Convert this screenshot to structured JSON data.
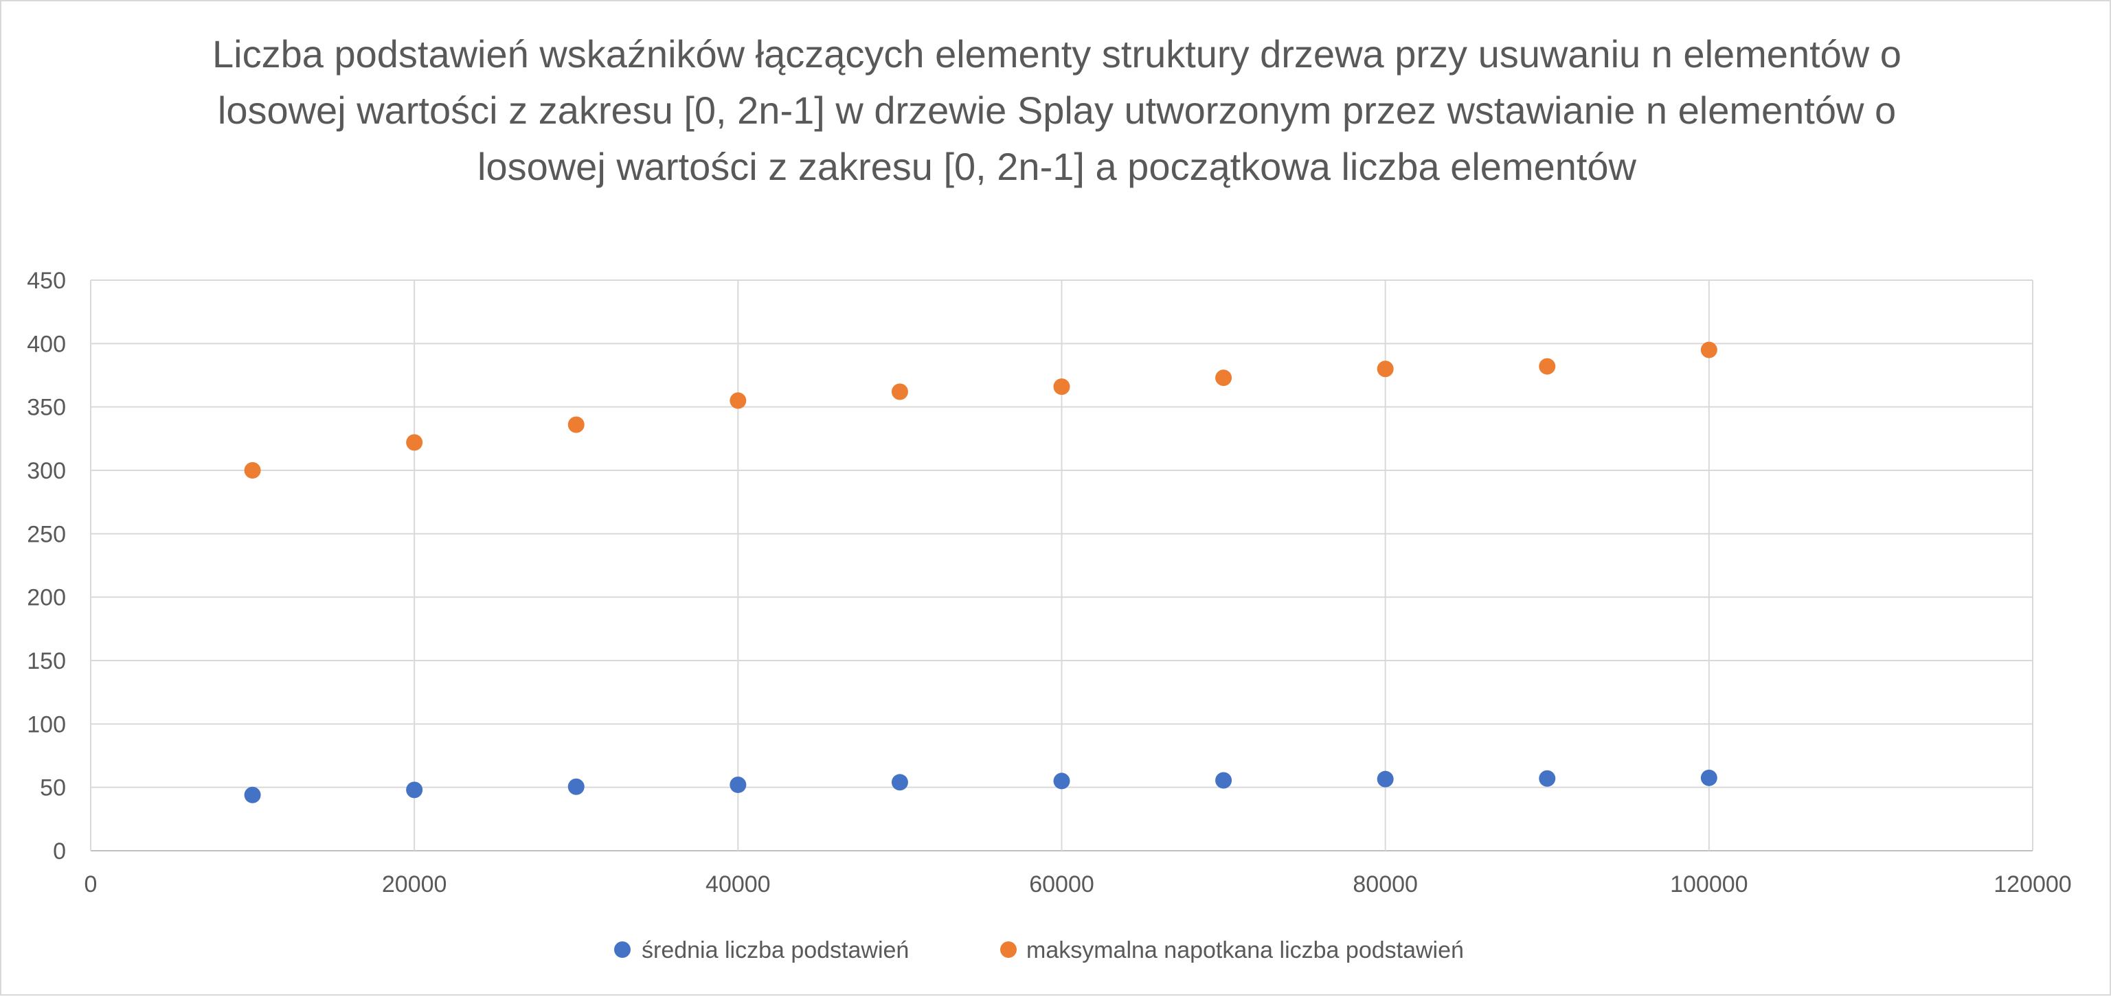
{
  "chart_data": {
    "type": "scatter",
    "title": "Liczba podstawień wskaźników łączących elementy struktury drzewa przy usuwaniu n elementów o losowej wartości z zakresu [0, 2n-1] w drzewie Splay utworzonym przez wstawianie n elementów o losowej wartości z zakresu [0, 2n-1] a początkowa liczba elementów",
    "xlabel": "",
    "ylabel": "",
    "xlim": [
      0,
      120000
    ],
    "ylim": [
      0,
      450
    ],
    "x_ticks": [
      0,
      20000,
      40000,
      60000,
      80000,
      100000,
      120000
    ],
    "y_ticks": [
      0,
      50,
      100,
      150,
      200,
      250,
      300,
      350,
      400,
      450
    ],
    "grid": true,
    "legend_position": "bottom",
    "x": [
      10000,
      20000,
      30000,
      40000,
      50000,
      60000,
      70000,
      80000,
      90000,
      100000
    ],
    "series": [
      {
        "name": "średnia liczba podstawień",
        "color": "#4472c4",
        "values": [
          44,
          48,
          50.5,
          52,
          54,
          55,
          55.5,
          56.5,
          57,
          57.5
        ]
      },
      {
        "name": "maksymalna napotkana liczba podstawień",
        "color": "#ed7d31",
        "values": [
          300,
          322,
          336,
          355,
          362,
          366,
          373,
          380,
          382,
          395
        ]
      }
    ]
  }
}
